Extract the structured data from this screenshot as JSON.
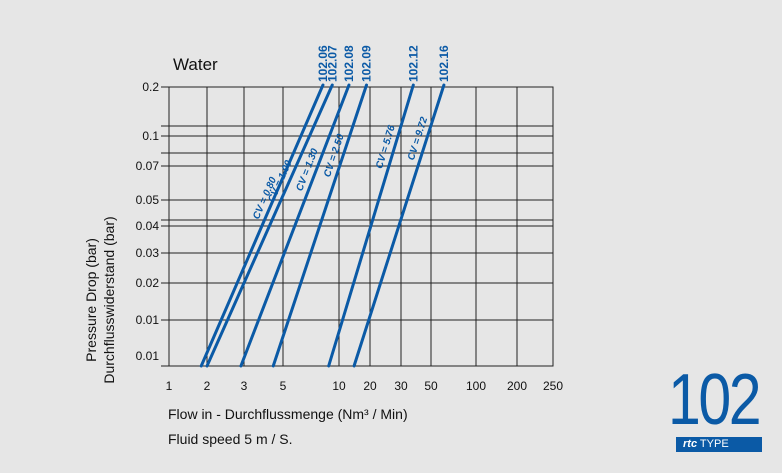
{
  "chart_data": {
    "type": "line",
    "title": "Water",
    "xlabel": "Flow in - Durchflussmenge (Nm³ / Min)",
    "xlabel_note": "Fluid speed 5 m / S.",
    "ylabel": [
      "Pressure Drop (bar)",
      "Durchflusswiderstand (bar)"
    ],
    "x_scale": "log",
    "x_ticks": [
      "1",
      "2",
      "3",
      "5",
      "10",
      "20",
      "30",
      "50",
      "100",
      "200",
      "250"
    ],
    "y_ticks": [
      "0.2",
      "0.1",
      "0.07",
      "0.05",
      "0.04",
      "0.03",
      "0.02",
      "0.01",
      "0.01"
    ],
    "xlim": [
      1,
      250
    ],
    "grid": true,
    "series": [
      {
        "name": "102.06",
        "cv": "CV = 0.80",
        "x": [
          1.8,
          8.2
        ],
        "y": [
          "0.01",
          "0.2"
        ]
      },
      {
        "name": "102.07",
        "cv": "CV = 1.00",
        "x": [
          2.0,
          9.2
        ],
        "y": [
          "0.01",
          "0.2"
        ]
      },
      {
        "name": "102.08",
        "cv": "CV = 1.30",
        "x": [
          2.9,
          12.5
        ],
        "y": [
          "0.01",
          "0.2"
        ]
      },
      {
        "name": "102.09",
        "cv": "CV = 2.50",
        "x": [
          4.4,
          18.5
        ],
        "y": [
          "0.01",
          "0.2"
        ]
      },
      {
        "name": "102.12",
        "cv": "CV = 5.76",
        "x": [
          8.8,
          37
        ],
        "y": [
          "0.01",
          "0.2"
        ]
      },
      {
        "name": "102.16",
        "cv": "CV = 9.72",
        "x": [
          14,
          61
        ],
        "y": [
          "0.01",
          "0.2"
        ]
      }
    ]
  },
  "branding": {
    "number": "102",
    "brand": "rtc",
    "suffix": "TYPE",
    "color": "#0b5aa6"
  }
}
